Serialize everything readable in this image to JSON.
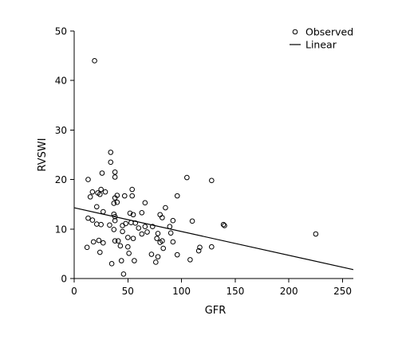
{
  "chart_data": {
    "type": "scatter",
    "xlabel": "GFR",
    "ylabel": "RVSWI",
    "xlim": [
      0,
      260
    ],
    "ylim": [
      0,
      50
    ],
    "xticks": [
      0,
      50,
      100,
      150,
      200,
      250
    ],
    "yticks": [
      0,
      10,
      20,
      30,
      40,
      50
    ],
    "grid": false,
    "legend_position": "top-right",
    "legend": {
      "observed_label": "Observed",
      "linear_label": "Linear"
    },
    "linear_fit": {
      "x": [
        0,
        260
      ],
      "y": [
        14.3,
        1.8
      ]
    },
    "series": [
      {
        "name": "Observed",
        "marker": "open-circle",
        "points": [
          [
            19,
            44
          ],
          [
            34,
            25.5
          ],
          [
            34,
            23.5
          ],
          [
            13,
            20
          ],
          [
            26,
            21.3
          ],
          [
            38,
            21.5
          ],
          [
            38,
            20.5
          ],
          [
            105,
            20.4
          ],
          [
            128,
            19.8
          ],
          [
            17,
            17.5
          ],
          [
            22,
            17.3
          ],
          [
            25,
            18
          ],
          [
            29,
            17.5
          ],
          [
            15,
            16.5
          ],
          [
            24,
            17
          ],
          [
            54,
            18
          ],
          [
            54,
            16.7
          ],
          [
            40,
            16.8
          ],
          [
            38,
            16.3
          ],
          [
            47,
            16.7
          ],
          [
            96,
            16.7
          ],
          [
            37,
            15.2
          ],
          [
            40,
            15.4
          ],
          [
            66,
            15.3
          ],
          [
            21,
            14.5
          ],
          [
            85,
            14.3
          ],
          [
            27,
            13.5
          ],
          [
            37,
            13
          ],
          [
            52,
            13.2
          ],
          [
            55,
            12.9
          ],
          [
            63,
            13.3
          ],
          [
            80,
            12.9
          ],
          [
            82,
            12.3
          ],
          [
            13,
            12.2
          ],
          [
            17,
            11.8
          ],
          [
            38,
            12.5
          ],
          [
            38,
            11.7
          ],
          [
            92,
            11.7
          ],
          [
            110,
            11.6
          ],
          [
            21,
            11
          ],
          [
            25,
            10.9
          ],
          [
            33,
            10.8
          ],
          [
            45,
            10.7
          ],
          [
            48,
            11.1
          ],
          [
            53,
            11.3
          ],
          [
            57,
            11.2
          ],
          [
            37,
            9.9
          ],
          [
            45,
            9.5
          ],
          [
            60,
            10.2
          ],
          [
            66,
            10.5
          ],
          [
            73,
            10.5
          ],
          [
            89,
            10.5
          ],
          [
            139,
            10.9
          ],
          [
            140,
            10.7
          ],
          [
            63,
            9
          ],
          [
            68,
            9.4
          ],
          [
            78,
            9.1
          ],
          [
            90,
            9.2
          ],
          [
            225,
            9
          ],
          [
            50,
            8.3
          ],
          [
            55,
            8.1
          ],
          [
            77,
            8.1
          ],
          [
            82,
            7.6
          ],
          [
            92,
            7.4
          ],
          [
            18,
            7.4
          ],
          [
            23,
            7.7
          ],
          [
            27,
            7.2
          ],
          [
            38,
            7.6
          ],
          [
            41,
            7.6
          ],
          [
            80,
            7.3
          ],
          [
            12,
            6.3
          ],
          [
            43,
            6.6
          ],
          [
            50,
            6.4
          ],
          [
            83,
            6.1
          ],
          [
            117,
            6.3
          ],
          [
            128,
            6.4
          ],
          [
            24,
            5.3
          ],
          [
            51,
            5.1
          ],
          [
            72,
            4.9
          ],
          [
            78,
            4.4
          ],
          [
            96,
            4.8
          ],
          [
            116,
            5.6
          ],
          [
            35,
            3
          ],
          [
            44,
            3.6
          ],
          [
            56,
            3.6
          ],
          [
            76,
            3.3
          ],
          [
            108,
            3.8
          ],
          [
            46,
            0.9
          ]
        ]
      }
    ]
  }
}
